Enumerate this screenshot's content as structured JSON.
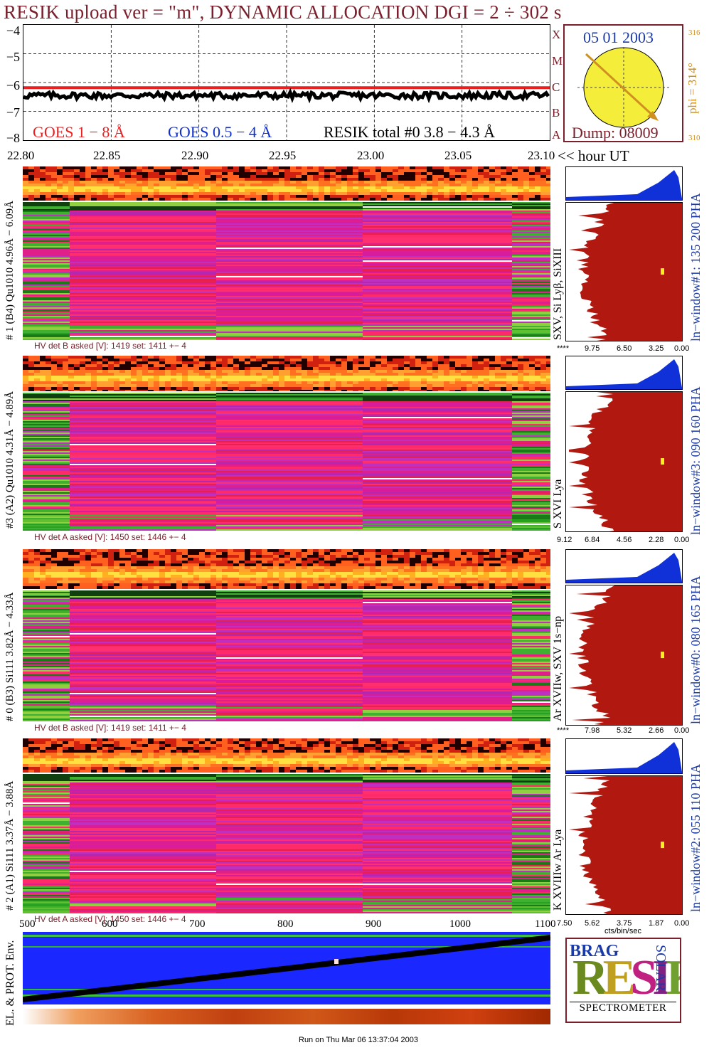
{
  "header": {
    "title": "RESIK upload ver = \"m\", DYNAMIC ALLOCATION  DGI =   2 ÷ 302 s"
  },
  "goes": {
    "legend_red": "GOES 1 − 8 Å",
    "legend_blue": "GOES 0.5 − 4 Å",
    "legend_black": "RESIK total #0  3.8 − 4.3 Å",
    "y_ticks": [
      "−4",
      "−5",
      "−6",
      "−7",
      "−8"
    ],
    "x_ticks": [
      "22.80",
      "22.85",
      "22.90",
      "22.95",
      "23.00",
      "23.05",
      "23.10"
    ],
    "x_unit_label": "<< hour UT",
    "class_letters": [
      "X",
      "M",
      "C",
      "B",
      "A"
    ],
    "colors": {
      "red": "#e82020",
      "blue": "#1030d0",
      "black": "#000000",
      "axis_text": "#7a1f2b"
    }
  },
  "sun": {
    "date": "05 01 2003",
    "dump": "Dump: 08009",
    "phi": "phi = 314°",
    "scale_top": "316",
    "scale_bottom": "310",
    "colors": {
      "disk": "#f4ee3a",
      "arrow": "#d09020",
      "text": "#1a3aa8"
    }
  },
  "channels": [
    {
      "id": "ch1",
      "label": "# 1 (B4) Qu1010 4.96Å − 6.09Å",
      "lines_label": "SXV, Si Lyβ, SiXIII",
      "window_label": "ln−window#1:  135 200 PHA",
      "hv_label": "HV det B asked [V]:  1419 set:  1411  +−    4",
      "hist_ticks": [
        "****",
        "9.75",
        "6.50",
        "3.25",
        "0.00"
      ]
    },
    {
      "id": "ch3",
      "label": "#3 (A2) Qu1010  4.31Å − 4.89Å",
      "lines_label": "S XVI Lya",
      "window_label": "ln−window#3:  090 160 PHA",
      "hv_label": "HV det A asked [V]:  1450 set:  1446  +−    4",
      "hist_ticks": [
        "9.12",
        "6.84",
        "4.56",
        "2.28",
        "0.00"
      ]
    },
    {
      "id": "ch0",
      "label": "# 0 (B3) Si111  3.82Å − 4.33Å",
      "lines_label": "Ar XVIIw,  SXV 1s−np",
      "window_label": "ln−window#0:  080 165 PHA",
      "hv_label": "HV det B asked [V]:  1419 set:  1411  +−    4",
      "hist_ticks": [
        "****",
        "7.98",
        "5.32",
        "2.66",
        "0.00"
      ]
    },
    {
      "id": "ch2",
      "label": "# 2 (A1) Si111  3.37Å − 3.88Å",
      "lines_label": "K XVIIIw  Ar Lya",
      "window_label": "ln−window#2:  055 110 PHA",
      "hv_label": "HV det A asked [V]:  1450 set:  1446  +−    4",
      "hist_ticks": [
        "7.50",
        "5.62",
        "3.75",
        "1.87",
        "0.00"
      ]
    }
  ],
  "hist_unit": "cts/bin/sec",
  "env": {
    "label": "EL. & PROT. Env.",
    "x_ticks": [
      "500",
      "600",
      "700",
      "800",
      "900",
      "1000",
      "1100"
    ]
  },
  "logo": {
    "letters": "RESIK",
    "left_top": "BRAG",
    "right_top": "SOLAR",
    "bottom": "SPECTROMETER"
  },
  "footer": {
    "run_text": "Run on Thu Mar 06 13:37:04 2003"
  },
  "chart_data": [
    {
      "type": "line",
      "title": "RESIK upload ver = \"m\", DYNAMIC ALLOCATION  DGI =   2 ÷ 302 s",
      "xlabel": "<< hour UT",
      "ylabel": "",
      "xlim": [
        22.8,
        23.1
      ],
      "ylim": [
        -8,
        -4
      ],
      "grid": true,
      "legend": "bottom",
      "series": [
        {
          "name": "GOES 1 − 8 Å",
          "color": "#e82020",
          "y_const": -6.18
        },
        {
          "name": "RESIK total #0  3.8 − 4.3 Å",
          "color": "#000000",
          "y_mean": -6.45
        }
      ]
    }
  ]
}
